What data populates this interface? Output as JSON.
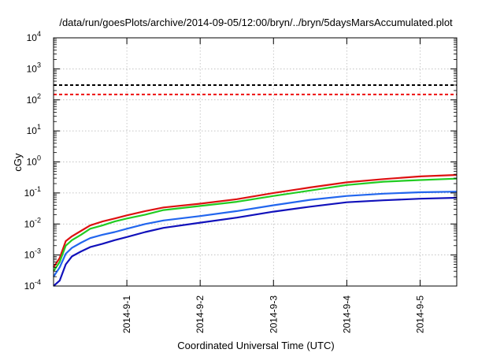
{
  "chart_data": {
    "type": "line",
    "title": "/data/run/goesPlots/archive/2014-09-05/12:00/bryn/../bryn/5daysMarsAccumulated.plot",
    "xlabel": "Coordinated Universal Time (UTC)",
    "ylabel": "cGy",
    "y_scale": "log",
    "ylim": [
      0.0001,
      10000
    ],
    "xlim": [
      "2014-08-31 00:00",
      "2014-09-05 12:00"
    ],
    "x_tick_labels": [
      "2014-9-1",
      "2014-9-2",
      "2014-9-3",
      "2014-9-4",
      "2014-9-5"
    ],
    "x_ticks": [
      "2014-09-01 00:00",
      "2014-09-02 00:00",
      "2014-09-03 00:00",
      "2014-09-04 00:00",
      "2014-09-05 00:00"
    ],
    "y_ticks": [
      0.0001,
      0.001,
      0.01,
      0.1,
      1,
      10,
      100,
      1000,
      10000
    ],
    "grid": true,
    "legend": "none",
    "reference_lines": [
      {
        "y": 300,
        "color": "#000000",
        "style": "dashed"
      },
      {
        "y": 150,
        "color": "#ee1111",
        "style": "dashed"
      }
    ],
    "series": [
      {
        "color": "#dd1111",
        "x": [
          "2014-08-31 00:00",
          "2014-08-31 02:00",
          "2014-08-31 04:00",
          "2014-08-31 06:00",
          "2014-08-31 09:00",
          "2014-08-31 12:00",
          "2014-08-31 16:00",
          "2014-08-31 20:00",
          "2014-09-01 00:00",
          "2014-09-01 06:00",
          "2014-09-01 12:00",
          "2014-09-02 00:00",
          "2014-09-02 12:00",
          "2014-09-03 00:00",
          "2014-09-03 12:00",
          "2014-09-04 00:00",
          "2014-09-04 12:00",
          "2014-09-05 00:00",
          "2014-09-05 12:00"
        ],
        "y": [
          0.0004,
          0.0008,
          0.0028,
          0.004,
          0.006,
          0.009,
          0.012,
          0.015,
          0.019,
          0.026,
          0.034,
          0.045,
          0.063,
          0.1,
          0.15,
          0.22,
          0.28,
          0.34,
          0.38
        ]
      },
      {
        "color": "#22cc22",
        "x": [
          "2014-08-31 00:00",
          "2014-08-31 02:00",
          "2014-08-31 04:00",
          "2014-08-31 06:00",
          "2014-08-31 09:00",
          "2014-08-31 12:00",
          "2014-08-31 16:00",
          "2014-08-31 20:00",
          "2014-09-01 00:00",
          "2014-09-01 06:00",
          "2014-09-01 12:00",
          "2014-09-02 00:00",
          "2014-09-02 12:00",
          "2014-09-03 00:00",
          "2014-09-03 12:00",
          "2014-09-04 00:00",
          "2014-09-04 12:00",
          "2014-09-05 00:00",
          "2014-09-05 12:00"
        ],
        "y": [
          0.0003,
          0.0006,
          0.002,
          0.003,
          0.0045,
          0.007,
          0.009,
          0.012,
          0.015,
          0.02,
          0.028,
          0.038,
          0.052,
          0.08,
          0.12,
          0.18,
          0.23,
          0.26,
          0.29
        ]
      },
      {
        "color": "#2266ee",
        "x": [
          "2014-08-31 00:00",
          "2014-08-31 02:00",
          "2014-08-31 04:00",
          "2014-08-31 06:00",
          "2014-08-31 09:00",
          "2014-08-31 12:00",
          "2014-08-31 16:00",
          "2014-08-31 20:00",
          "2014-09-01 00:00",
          "2014-09-01 06:00",
          "2014-09-01 12:00",
          "2014-09-02 00:00",
          "2014-09-02 12:00",
          "2014-09-03 00:00",
          "2014-09-03 12:00",
          "2014-09-04 00:00",
          "2014-09-04 12:00",
          "2014-09-05 00:00",
          "2014-09-05 12:00"
        ],
        "y": [
          0.0002,
          0.0004,
          0.0011,
          0.0017,
          0.0025,
          0.0035,
          0.0045,
          0.0055,
          0.007,
          0.01,
          0.013,
          0.018,
          0.026,
          0.04,
          0.06,
          0.08,
          0.095,
          0.105,
          0.11
        ]
      },
      {
        "color": "#1111bb",
        "x": [
          "2014-08-31 00:00",
          "2014-08-31 02:00",
          "2014-08-31 04:00",
          "2014-08-31 06:00",
          "2014-08-31 09:00",
          "2014-08-31 12:00",
          "2014-08-31 16:00",
          "2014-08-31 20:00",
          "2014-09-01 00:00",
          "2014-09-01 06:00",
          "2014-09-01 12:00",
          "2014-09-02 00:00",
          "2014-09-02 12:00",
          "2014-09-03 00:00",
          "2014-09-03 12:00",
          "2014-09-04 00:00",
          "2014-09-04 12:00",
          "2014-09-05 00:00",
          "2014-09-05 12:00"
        ],
        "y": [
          0.0001,
          0.00015,
          0.0005,
          0.0009,
          0.0013,
          0.0018,
          0.0023,
          0.003,
          0.0038,
          0.0055,
          0.0075,
          0.011,
          0.016,
          0.025,
          0.036,
          0.05,
          0.058,
          0.065,
          0.07
        ]
      }
    ]
  }
}
